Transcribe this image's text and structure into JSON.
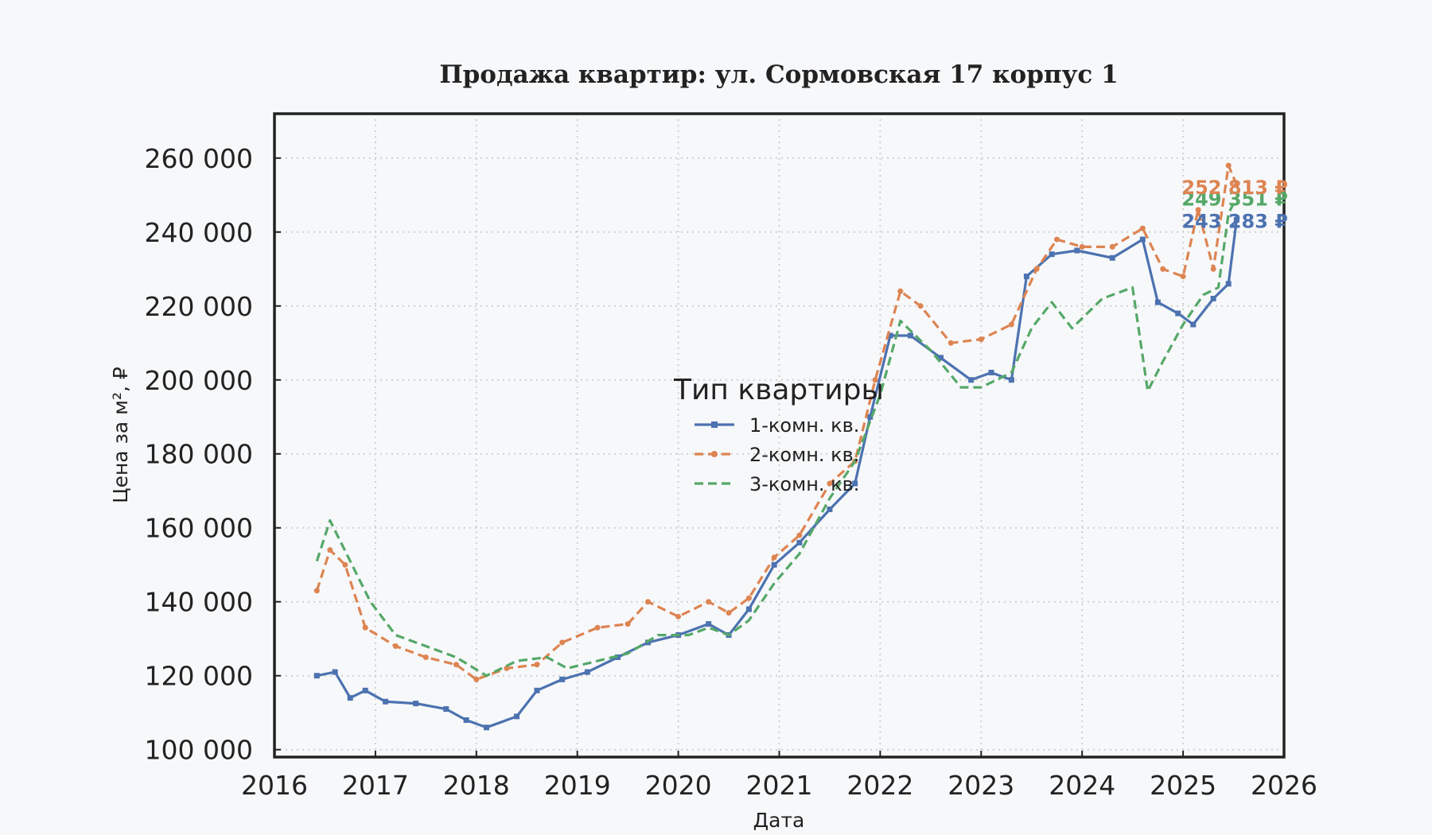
{
  "chart_data": {
    "type": "line",
    "title": "Продажа квартир: ул. Сормовская 17 корпус 1",
    "xlabel": "Дата",
    "ylabel": "Цена за м², ₽",
    "xlim": [
      2016,
      2026
    ],
    "ylim": [
      98000,
      272000
    ],
    "x_ticks": [
      "2016",
      "2017",
      "2018",
      "2019",
      "2020",
      "2021",
      "2022",
      "2023",
      "2024",
      "2025",
      "2026"
    ],
    "y_ticks": [
      "100 000",
      "120 000",
      "140 000",
      "160 000",
      "180 000",
      "200 000",
      "220 000",
      "240 000",
      "260 000"
    ],
    "grid": true,
    "legend": {
      "title": "Тип квартиры",
      "placement": "center"
    },
    "series": [
      {
        "name": "1-комн. кв.",
        "color": "#4c72b0",
        "style": "solid-square-markers",
        "end_label": "243 283 ₽",
        "x": [
          2016.42,
          2016.6,
          2016.75,
          2016.9,
          2017.1,
          2017.4,
          2017.7,
          2017.9,
          2018.1,
          2018.4,
          2018.6,
          2018.85,
          2019.1,
          2019.4,
          2019.7,
          2020.0,
          2020.3,
          2020.5,
          2020.7,
          2020.95,
          2021.2,
          2021.5,
          2021.75,
          2021.9,
          2022.1,
          2022.3,
          2022.6,
          2022.9,
          2023.1,
          2023.3,
          2023.45,
          2023.7,
          2023.95,
          2024.3,
          2024.6,
          2024.75,
          2024.95,
          2025.1,
          2025.3,
          2025.45,
          2025.53
        ],
        "values": [
          120000,
          121000,
          114000,
          116000,
          113000,
          112500,
          111000,
          108000,
          106000,
          109000,
          116000,
          119000,
          121000,
          125000,
          129000,
          131000,
          134000,
          131000,
          138000,
          150000,
          156000,
          165000,
          172000,
          190000,
          212000,
          212000,
          206000,
          200000,
          202000,
          200000,
          228000,
          234000,
          235000,
          233000,
          238000,
          221000,
          218000,
          215000,
          222000,
          226000,
          243283
        ]
      },
      {
        "name": "2-комн. кв.",
        "color": "#dd8452",
        "style": "dashed-star-markers",
        "end_label": "252 813 ₽",
        "x": [
          2016.42,
          2016.55,
          2016.7,
          2016.9,
          2017.2,
          2017.5,
          2017.8,
          2018.0,
          2018.3,
          2018.6,
          2018.85,
          2019.2,
          2019.5,
          2019.7,
          2020.0,
          2020.3,
          2020.5,
          2020.7,
          2020.95,
          2021.2,
          2021.5,
          2021.75,
          2021.95,
          2022.2,
          2022.4,
          2022.7,
          2023.0,
          2023.3,
          2023.55,
          2023.75,
          2024.0,
          2024.3,
          2024.6,
          2024.8,
          2025.0,
          2025.15,
          2025.3,
          2025.45,
          2025.53
        ],
        "values": [
          143000,
          154000,
          150000,
          133000,
          128000,
          125000,
          123000,
          119000,
          122000,
          123000,
          129000,
          133000,
          134000,
          140000,
          136000,
          140000,
          137000,
          141000,
          152000,
          158000,
          172000,
          178000,
          200000,
          224000,
          220000,
          210000,
          211000,
          215000,
          230000,
          238000,
          236000,
          236000,
          241000,
          230000,
          228000,
          246000,
          230000,
          258000,
          252813
        ]
      },
      {
        "name": "3-комн. кв.",
        "color": "#55a868",
        "style": "dashed",
        "end_label": "249 351 ₽",
        "x": [
          2016.42,
          2016.55,
          2016.75,
          2016.95,
          2017.2,
          2017.5,
          2017.8,
          2018.1,
          2018.4,
          2018.7,
          2018.9,
          2019.2,
          2019.5,
          2019.8,
          2020.1,
          2020.3,
          2020.5,
          2020.7,
          2020.95,
          2021.2,
          2021.5,
          2021.75,
          2022.0,
          2022.2,
          2022.5,
          2022.8,
          2023.0,
          2023.3,
          2023.5,
          2023.7,
          2023.9,
          2024.2,
          2024.5,
          2024.65,
          2024.8,
          2025.0,
          2025.2,
          2025.35,
          2025.45,
          2025.53
        ],
        "values": [
          151000,
          162000,
          151000,
          140000,
          131000,
          128000,
          125000,
          120000,
          124000,
          125000,
          122000,
          124000,
          126000,
          131000,
          131000,
          133000,
          131000,
          135000,
          145000,
          153000,
          168000,
          178000,
          196000,
          216000,
          208000,
          198000,
          198000,
          202000,
          214000,
          221000,
          214000,
          222000,
          225000,
          197000,
          205000,
          215000,
          223000,
          225000,
          245000,
          249351
        ]
      }
    ]
  }
}
